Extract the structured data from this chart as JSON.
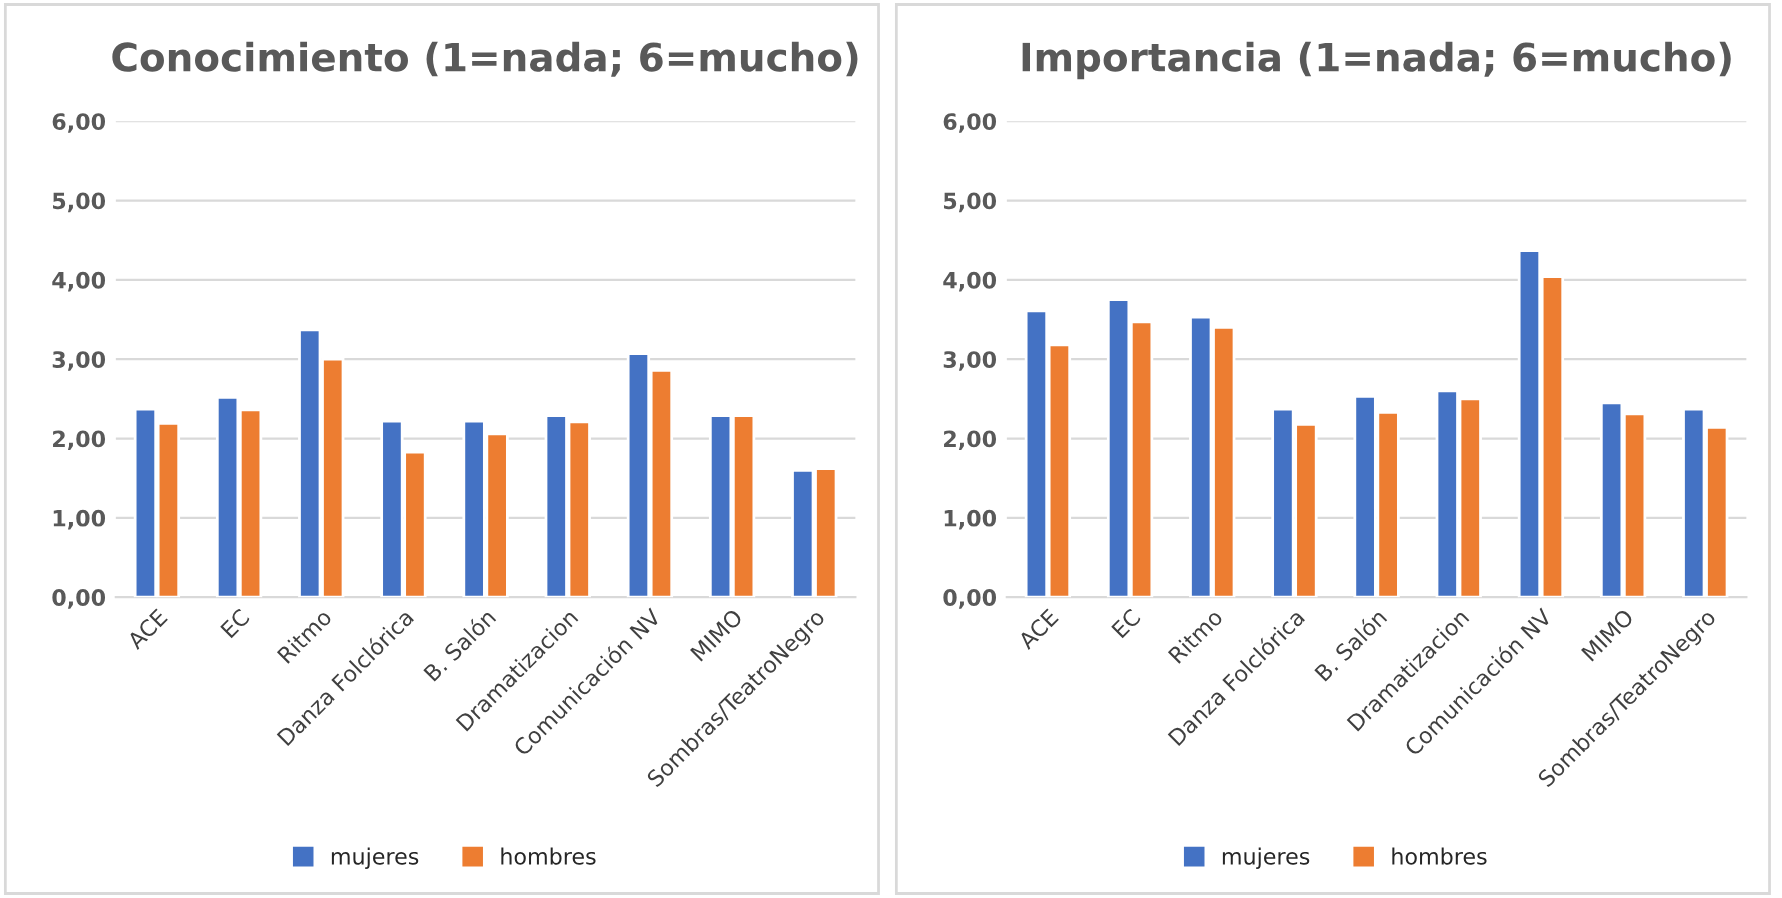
{
  "chart_data": [
    {
      "type": "bar",
      "title": "Conocimiento (1=nada; 6=mucho)",
      "categories": [
        "ACE",
        "EC",
        "Ritmo",
        "Danza Folclórica",
        "B. Salón",
        "Dramatizacion",
        "Comunicación NV",
        "MIMO",
        "Sombras/TeatroNegro"
      ],
      "series": [
        {
          "name": "mujeres",
          "color": "#4472c4",
          "values": [
            2.37,
            2.52,
            3.37,
            2.22,
            2.22,
            2.29,
            3.07,
            2.29,
            1.6
          ]
        },
        {
          "name": "hombres",
          "color": "#ed7d31",
          "values": [
            2.19,
            2.36,
            3.0,
            1.83,
            2.06,
            2.21,
            2.86,
            2.29,
            1.62
          ]
        }
      ],
      "ylim": [
        0,
        6
      ],
      "yticks": [
        {
          "value": 0,
          "label": "0,00"
        },
        {
          "value": 1,
          "label": "1,00"
        },
        {
          "value": 2,
          "label": "2,00"
        },
        {
          "value": 3,
          "label": "3,00"
        },
        {
          "value": 4,
          "label": "4,00"
        },
        {
          "value": 5,
          "label": "5,00"
        },
        {
          "value": 6,
          "label": "6,00"
        }
      ],
      "grid": "y",
      "legend": "bottom"
    },
    {
      "type": "bar",
      "title": "Importancia (1=nada; 6=mucho)",
      "categories": [
        "ACE",
        "EC",
        "Ritmo",
        "Danza Folclórica",
        "B. Salón",
        "Dramatizacion",
        "Comunicación NV",
        "MIMO",
        "Sombras/TeatroNegro"
      ],
      "series": [
        {
          "name": "mujeres",
          "color": "#4472c4",
          "values": [
            3.61,
            3.75,
            3.53,
            2.37,
            2.53,
            2.6,
            4.37,
            2.45,
            2.37
          ]
        },
        {
          "name": "hombres",
          "color": "#ed7d31",
          "values": [
            3.18,
            3.47,
            3.4,
            2.18,
            2.33,
            2.5,
            4.04,
            2.31,
            2.14
          ]
        }
      ],
      "ylim": [
        0,
        6
      ],
      "yticks": [
        {
          "value": 0,
          "label": "0,00"
        },
        {
          "value": 1,
          "label": "1,00"
        },
        {
          "value": 2,
          "label": "2,00"
        },
        {
          "value": 3,
          "label": "3,00"
        },
        {
          "value": 4,
          "label": "4,00"
        },
        {
          "value": 5,
          "label": "5,00"
        },
        {
          "value": 6,
          "label": "6,00"
        }
      ],
      "grid": "y",
      "legend": "bottom"
    }
  ]
}
